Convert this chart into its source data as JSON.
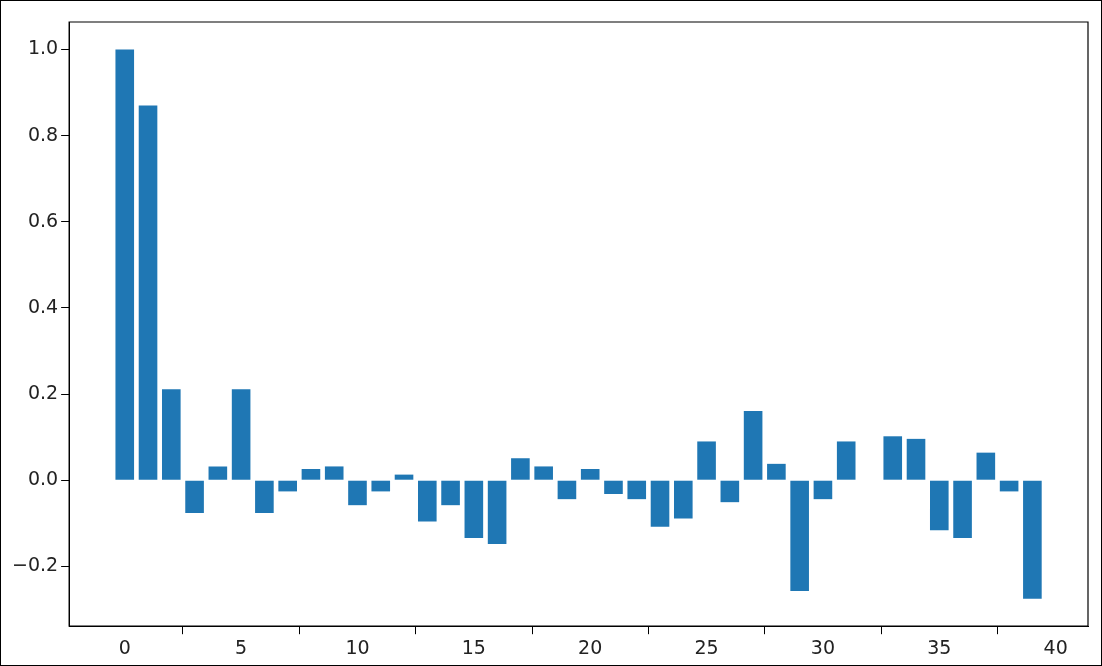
{
  "chart_data": {
    "type": "bar",
    "x": [
      0,
      1,
      2,
      3,
      4,
      5,
      6,
      7,
      8,
      9,
      10,
      11,
      12,
      13,
      14,
      15,
      16,
      17,
      18,
      19,
      20,
      21,
      22,
      23,
      24,
      25,
      26,
      27,
      28,
      29,
      30,
      31,
      32,
      33,
      34,
      35,
      36,
      37,
      38,
      39
    ],
    "values": [
      1.0,
      0.87,
      0.211,
      -0.076,
      0.032,
      0.211,
      -0.076,
      -0.026,
      0.026,
      0.032,
      -0.058,
      -0.026,
      0.013,
      -0.096,
      -0.058,
      -0.134,
      -0.148,
      0.051,
      0.032,
      -0.044,
      0.026,
      -0.032,
      -0.044,
      -0.108,
      -0.089,
      0.09,
      -0.051,
      0.161,
      0.038,
      -0.257,
      -0.044,
      0.09,
      0,
      0.102,
      0.096,
      -0.116,
      -0.134,
      0.064,
      -0.026,
      -0.275
    ],
    "color": "#1f77b4",
    "xlim": [
      -2.39,
      41.39
    ],
    "xticks": [
      0,
      5,
      10,
      15,
      20,
      25,
      30,
      35,
      40
    ],
    "ylim": [
      -0.339,
      1.064
    ],
    "yticks": [
      {
        "value": -0.2,
        "label": "−0.2"
      },
      {
        "value": 0,
        "label": "0.0"
      },
      {
        "value": 0.2,
        "label": "0.2"
      },
      {
        "value": 0.4,
        "label": "0.4"
      },
      {
        "value": 0.6,
        "label": "0.6"
      },
      {
        "value": 0.8,
        "label": "0.8"
      },
      {
        "value": 1.0,
        "label": "1.0"
      }
    ],
    "grid": false,
    "legend": false
  }
}
